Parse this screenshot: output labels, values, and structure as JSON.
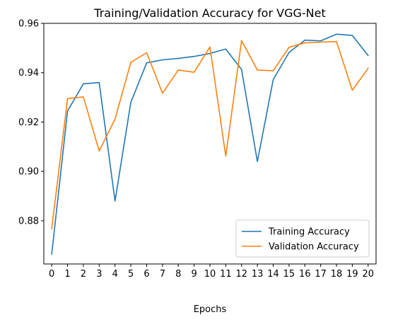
{
  "chart_data": {
    "type": "line",
    "title": "Training/Validation Accuracy for VGG-Net",
    "xlabel": "Epochs",
    "ylabel": "",
    "x": [
      0,
      1,
      2,
      3,
      4,
      5,
      6,
      7,
      8,
      9,
      10,
      11,
      12,
      13,
      14,
      15,
      16,
      17,
      18,
      19,
      20
    ],
    "xlim": [
      -0.5,
      20.5
    ],
    "ylim": [
      0.8625,
      0.96
    ],
    "yticks": [
      0.88,
      0.9,
      0.92,
      0.94,
      0.96
    ],
    "ytick_labels": [
      "0.88",
      "0.90",
      "0.92",
      "0.94",
      "0.96"
    ],
    "grid": false,
    "legend_position": "lower right",
    "series": [
      {
        "name": "Training Accuracy",
        "color": "#1f77b4",
        "values": [
          0.8665,
          0.9245,
          0.9355,
          0.936,
          0.888,
          0.928,
          0.944,
          0.9452,
          0.9458,
          0.9466,
          0.9478,
          0.9496,
          0.9413,
          0.904,
          0.9372,
          0.9482,
          0.9532,
          0.9529,
          0.9556,
          0.9551,
          0.947
        ]
      },
      {
        "name": "Validation Accuracy",
        "color": "#ff7f0e",
        "values": [
          0.8768,
          0.9295,
          0.9302,
          0.9083,
          0.9212,
          0.9442,
          0.9481,
          0.9317,
          0.9411,
          0.9402,
          0.9504,
          0.9062,
          0.953,
          0.9411,
          0.9408,
          0.9503,
          0.9521,
          0.9524,
          0.9526,
          0.9329,
          0.9418
        ]
      }
    ]
  }
}
